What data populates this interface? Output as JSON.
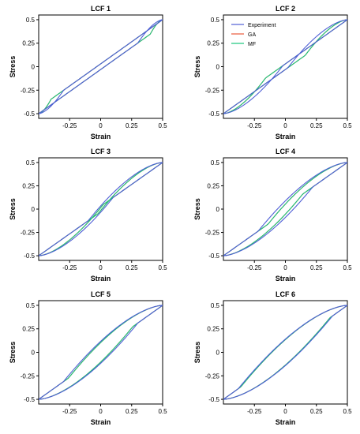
{
  "colors": {
    "experiment": "#4f5fd6",
    "ga": "#e8583a",
    "mf": "#19c67c"
  },
  "chart_data": [
    {
      "type": "line",
      "title": "LCF 1",
      "xlabel": "Strain",
      "ylabel": "Stress",
      "xlim": [
        -0.5,
        0.5
      ],
      "ylim": [
        -0.55,
        0.55
      ],
      "xticks": [
        "-0.25",
        "0",
        "0.25",
        "0.5"
      ],
      "yticks": [
        "-0.5",
        "-0.25",
        "0",
        "0.25",
        "0.5"
      ],
      "strain_amplitude": 0.5,
      "linear_limit": 0.45,
      "loop_half_width": 0.02,
      "gap": [
        -0.03,
        0.01
      ],
      "series": [
        {
          "name": "Experiment",
          "linear_limit": 0.4,
          "loop_half_width": 0.03
        },
        {
          "name": "GA",
          "linear_limit": 0.45,
          "loop_half_width": 0.02
        },
        {
          "name": "MF",
          "linear_limit": 0.45,
          "loop_half_width": 0.015
        }
      ]
    },
    {
      "type": "line",
      "title": "LCF 2",
      "xlabel": "Strain",
      "ylabel": "Stress",
      "xlim": [
        -0.5,
        0.5
      ],
      "ylim": [
        -0.55,
        0.55
      ],
      "xticks": [
        "-0.25",
        "0",
        "0.25",
        "0.5"
      ],
      "yticks": [
        "-0.5",
        "-0.25",
        "0",
        "0.25",
        "0.5"
      ],
      "legend_position": "top-left",
      "series": [
        {
          "name": "Experiment",
          "linear_limit": 0.26,
          "loop_half_width": 0.08
        },
        {
          "name": "GA",
          "linear_limit": 0.33,
          "loop_half_width": 0.1
        },
        {
          "name": "MF",
          "linear_limit": 0.33,
          "loop_half_width": 0.105
        }
      ]
    },
    {
      "type": "line",
      "title": "LCF 3",
      "xlabel": "Strain",
      "ylabel": "Stress",
      "xlim": [
        -0.5,
        0.5
      ],
      "ylim": [
        -0.55,
        0.55
      ],
      "xticks": [
        "-0.25",
        "0",
        "0.25",
        "0.5"
      ],
      "yticks": [
        "-0.5",
        "-0.25",
        "0",
        "0.25",
        "0.5"
      ],
      "series": [
        {
          "name": "Experiment",
          "linear_limit": 0.2,
          "loop_half_width": 0.17
        },
        {
          "name": "GA",
          "linear_limit": 0.24,
          "loop_half_width": 0.19
        },
        {
          "name": "MF",
          "linear_limit": 0.24,
          "loop_half_width": 0.2
        }
      ]
    },
    {
      "type": "line",
      "title": "LCF 4",
      "xlabel": "Strain",
      "ylabel": "Stress",
      "xlim": [
        -0.5,
        0.5
      ],
      "ylim": [
        -0.55,
        0.55
      ],
      "xticks": [
        "-0.25",
        "0",
        "0.25",
        "0.5"
      ],
      "yticks": [
        "-0.5",
        "-0.25",
        "0",
        "0.25",
        "0.5"
      ],
      "series": [
        {
          "name": "Experiment",
          "linear_limit": 0.14,
          "loop_half_width": 0.22
        },
        {
          "name": "GA",
          "linear_limit": 0.18,
          "loop_half_width": 0.24
        },
        {
          "name": "MF",
          "linear_limit": 0.18,
          "loop_half_width": 0.245
        }
      ]
    },
    {
      "type": "line",
      "title": "LCF 5",
      "xlabel": "Strain",
      "ylabel": "Stress",
      "xlim": [
        -0.5,
        0.5
      ],
      "ylim": [
        -0.55,
        0.55
      ],
      "xticks": [
        "-0.25",
        "0",
        "0.25",
        "0.5"
      ],
      "yticks": [
        "-0.5",
        "-0.25",
        "0",
        "0.25",
        "0.5"
      ],
      "series": [
        {
          "name": "Experiment",
          "linear_limit": 0.1,
          "loop_half_width": 0.3
        },
        {
          "name": "GA",
          "linear_limit": 0.12,
          "loop_half_width": 0.31
        },
        {
          "name": "MF",
          "linear_limit": 0.12,
          "loop_half_width": 0.315
        }
      ]
    },
    {
      "type": "line",
      "title": "LCF 6",
      "xlabel": "Strain",
      "ylabel": "Stress",
      "xlim": [
        -0.5,
        0.5
      ],
      "ylim": [
        -0.55,
        0.55
      ],
      "xticks": [
        "-0.25",
        "0",
        "0.25",
        "0.5"
      ],
      "yticks": [
        "-0.5",
        "-0.25",
        "0",
        "0.25",
        "0.5"
      ],
      "series": [
        {
          "name": "Experiment",
          "linear_limit": 0.06,
          "loop_half_width": 0.36
        },
        {
          "name": "GA",
          "linear_limit": 0.07,
          "loop_half_width": 0.37
        },
        {
          "name": "MF",
          "linear_limit": 0.07,
          "loop_half_width": 0.375
        }
      ]
    }
  ]
}
